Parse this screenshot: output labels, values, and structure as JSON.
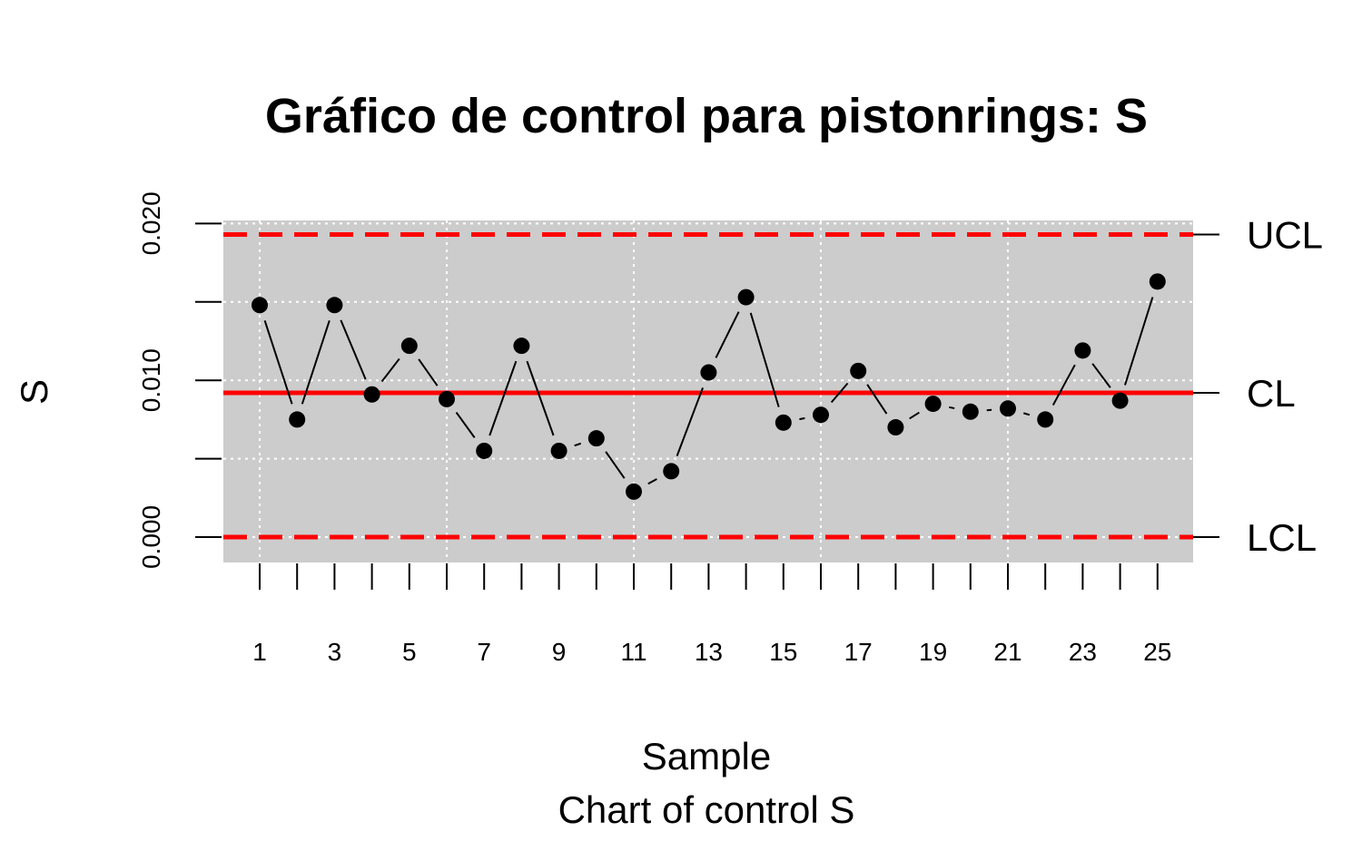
{
  "chart_data": {
    "type": "line",
    "title": "Gráfico de control para pistonrings: S",
    "xlabel": "Sample",
    "subtitle": "Chart of control S",
    "ylabel": "S",
    "x": [
      1,
      2,
      3,
      4,
      5,
      6,
      7,
      8,
      9,
      10,
      11,
      12,
      13,
      14,
      15,
      16,
      17,
      18,
      19,
      20,
      21,
      22,
      23,
      24,
      25
    ],
    "x_tick_labels": [
      "1",
      "3",
      "5",
      "7",
      "9",
      "11",
      "13",
      "15",
      "17",
      "19",
      "21",
      "23",
      "25"
    ],
    "y_tick_labels": [
      "0.000",
      "0.010",
      "0.020"
    ],
    "ylim": [
      -0.0017,
      0.0202
    ],
    "xlim": [
      0,
      26
    ],
    "series": [
      {
        "values": [
          0.0148,
          0.0075,
          0.0148,
          0.0091,
          0.0122,
          0.0088,
          0.0055,
          0.0122,
          0.0055,
          0.0063,
          0.0029,
          0.0042,
          0.0105,
          0.0153,
          0.0073,
          0.0078,
          0.0106,
          0.007,
          0.0085,
          0.008,
          0.0082,
          0.0075,
          0.0119,
          0.0087,
          0.0163
        ]
      }
    ],
    "control_limits": [
      {
        "label": "UCL",
        "value": 0.0193,
        "style": "dashed"
      },
      {
        "label": "CL",
        "value": 0.0092,
        "style": "solid"
      },
      {
        "label": "LCL",
        "value": 0.0,
        "style": "dashed"
      }
    ],
    "grid": true,
    "colors": {
      "panel_bg": "#cccccc",
      "grid": "#ffffff",
      "limits": "#ff0000",
      "points": "#000000"
    }
  }
}
